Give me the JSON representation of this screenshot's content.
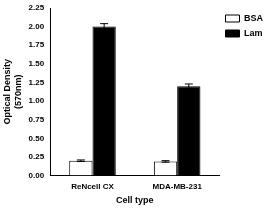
{
  "chart_data": {
    "type": "bar",
    "xlabel": "Cell type",
    "ylabel": [
      "Optical Density",
      "(570nm)"
    ],
    "categories": [
      "ReNcell CX",
      "MDA-MB-231"
    ],
    "series": [
      {
        "name": "BSA",
        "color": "#ffffff",
        "values": [
          0.2,
          0.19
        ],
        "errors": [
          0.01,
          0.01
        ]
      },
      {
        "name": "Lam",
        "color": "#000000",
        "values": [
          2.0,
          1.2
        ],
        "errors": [
          0.04,
          0.03
        ]
      }
    ],
    "ylim": [
      0,
      2.25
    ],
    "yticks": [
      {
        "value": 0,
        "label": "0.00"
      },
      0.25,
      {
        "value": 0.5,
        "label": "0.50"
      },
      0.75,
      {
        "value": 1,
        "label": "1.00"
      },
      1.25,
      {
        "value": 1.5,
        "label": "1.50"
      },
      1.75,
      {
        "value": 2,
        "label": "2.00"
      },
      2.25
    ],
    "grid": false,
    "legend": "upper right"
  }
}
